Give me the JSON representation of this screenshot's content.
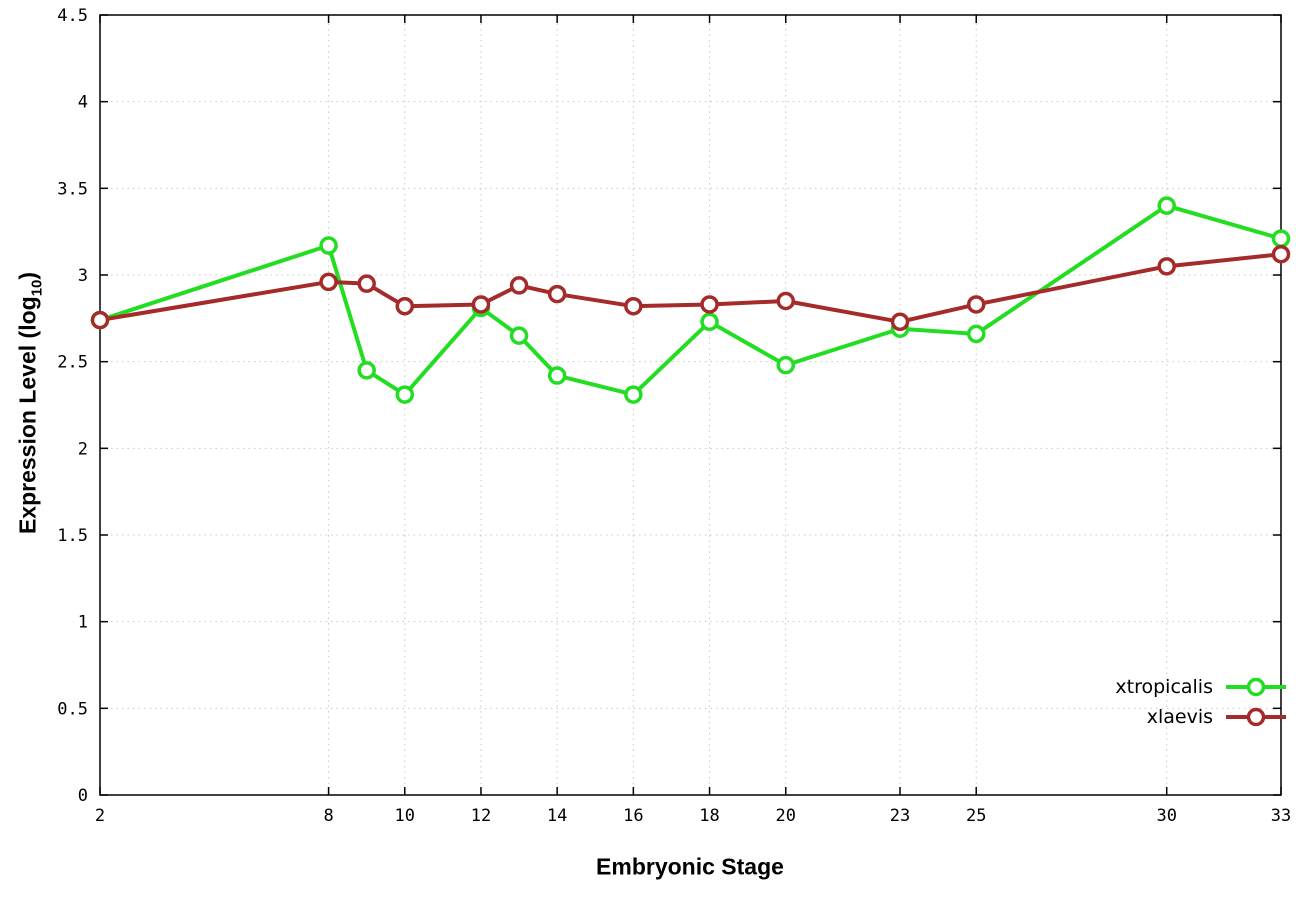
{
  "labels": {
    "ylabel_main": "Expression Level (log",
    "ylabel_sub": "10",
    "ylabel_end": ")",
    "xlabel": "Embryonic Stage"
  },
  "chart_data": {
    "type": "line",
    "title": "",
    "xlabel": "Embryonic Stage",
    "ylabel": "Expression Level (log10)",
    "x": [
      2,
      8,
      9,
      10,
      12,
      13,
      14,
      16,
      18,
      20,
      23,
      25,
      30,
      33
    ],
    "xlim": [
      2,
      33
    ],
    "ylim": [
      0,
      4.5
    ],
    "x_ticks": [
      2,
      8,
      10,
      12,
      14,
      16,
      18,
      20,
      23,
      25,
      30,
      33
    ],
    "y_ticks": [
      0,
      0.5,
      1,
      1.5,
      2,
      2.5,
      3,
      3.5,
      4,
      4.5
    ],
    "grid": true,
    "legend_position": "bottom-right",
    "colors": {
      "grid": "#c8c8c8",
      "border": "#000000",
      "marker_fill": "#ffffff"
    },
    "series": [
      {
        "name": "xtropicalis",
        "color": "#23dd23",
        "values": [
          2.74,
          3.17,
          2.45,
          2.31,
          2.81,
          2.65,
          2.42,
          2.31,
          2.73,
          2.48,
          2.69,
          2.66,
          3.4,
          3.21
        ]
      },
      {
        "name": "xlaevis",
        "color": "#a52a2a",
        "values": [
          2.74,
          2.96,
          2.95,
          2.82,
          2.83,
          2.94,
          2.89,
          2.82,
          2.83,
          2.85,
          2.73,
          2.83,
          3.05,
          3.12
        ]
      }
    ]
  }
}
